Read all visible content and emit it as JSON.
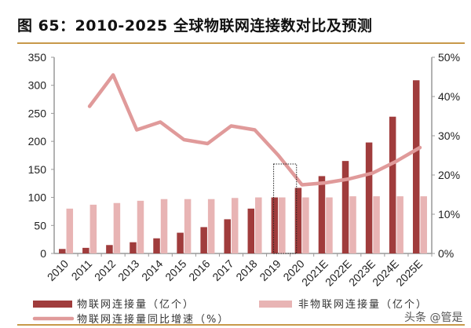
{
  "title": "图 65：2010-2025 全球物联网连接数对比及预测",
  "watermark": "头条 @管是",
  "chart_data": {
    "type": "bar",
    "categories": [
      "2010",
      "2011",
      "2012",
      "2013",
      "2014",
      "2015",
      "2016",
      "2017",
      "2018",
      "2019",
      "2020",
      "2021E",
      "2022E",
      "2023E",
      "2024E",
      "2025E"
    ],
    "series": [
      {
        "name": "物联网连接量（亿个）",
        "type": "bar",
        "axis": "left",
        "color": "#a03c3c",
        "values": [
          8,
          10,
          15,
          20,
          27,
          37,
          47,
          61,
          80,
          100,
          117,
          138,
          165,
          198,
          244,
          309
        ]
      },
      {
        "name": "非物联网连接量（亿个）",
        "type": "bar",
        "axis": "left",
        "color": "#e8b4b4",
        "values": [
          80,
          87,
          90,
          94,
          97,
          97,
          97,
          99,
          100,
          100,
          100,
          100,
          102,
          102,
          102,
          102
        ]
      },
      {
        "name": "物联网连接量同比增速（%）",
        "type": "line",
        "axis": "right",
        "color": "#e09a9a",
        "values": [
          null,
          37.5,
          45.5,
          31.5,
          33.5,
          29,
          28,
          32.5,
          31.5,
          25,
          17.5,
          18,
          19,
          20.5,
          23.5,
          27
        ]
      }
    ],
    "left_axis": {
      "min": 0,
      "max": 350,
      "ticks": [
        "0",
        "50",
        "100",
        "150",
        "200",
        "250",
        "300",
        "350"
      ]
    },
    "right_axis": {
      "min": 0,
      "max": 50,
      "ticks": [
        "0%",
        "10%",
        "20%",
        "30%",
        "40%",
        "50%"
      ]
    },
    "grid": false,
    "legend": "bottom",
    "annotation": "dotted box highlighting 2019-2020"
  }
}
